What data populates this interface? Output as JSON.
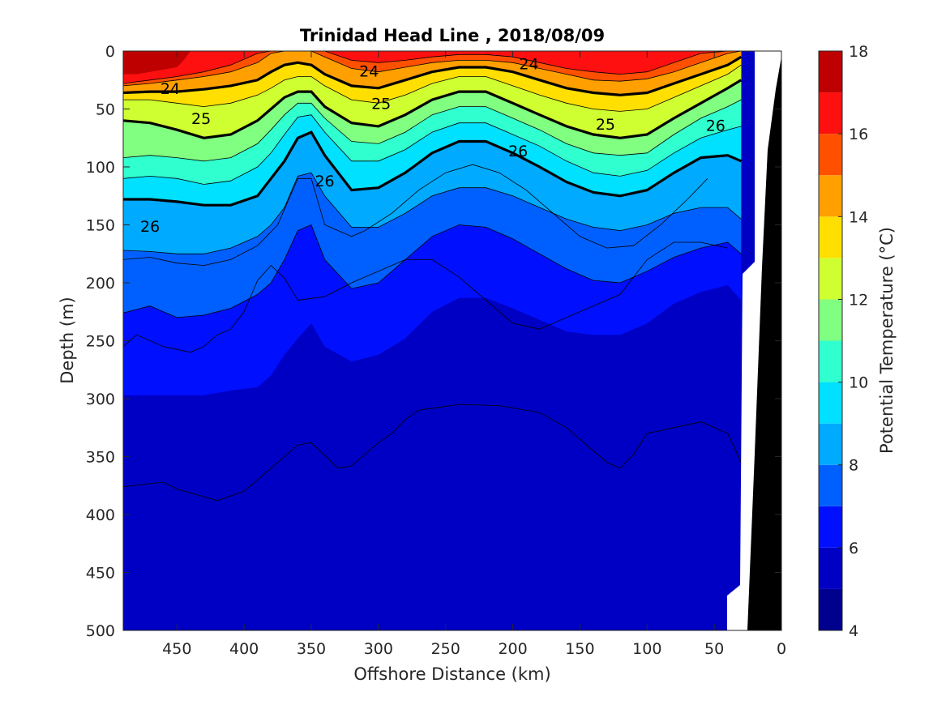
{
  "chart_data": {
    "type": "heatmap",
    "title": "Trinidad Head Line , 2018/08/09",
    "xlabel": "Offshore Distance (km)",
    "ylabel": "Depth (m)",
    "xlim": [
      490,
      0
    ],
    "ylim": [
      0,
      500
    ],
    "x_ticks": [
      450,
      400,
      350,
      300,
      250,
      200,
      150,
      100,
      50,
      0
    ],
    "y_ticks": [
      0,
      50,
      100,
      150,
      200,
      250,
      300,
      350,
      400,
      450,
      500
    ],
    "colorbar": {
      "label": "Potential Temperature (°C)",
      "ticks": [
        4,
        6,
        8,
        10,
        12,
        14,
        16,
        18
      ],
      "levels": [
        4,
        5,
        6,
        7,
        8,
        9,
        10,
        11,
        12,
        13,
        14,
        15,
        16,
        17,
        18
      ],
      "colors": [
        "#00008f",
        "#0000c4",
        "#0010ff",
        "#0060ff",
        "#00aaff",
        "#00e0ff",
        "#30ffcf",
        "#80ff80",
        "#cfff30",
        "#ffdf00",
        "#ffa000",
        "#ff5000",
        "#ff1010",
        "#bf0000"
      ]
    },
    "temperature_fields": [
      {
        "t": 5,
        "x": [
          490,
          480,
          460,
          450,
          430,
          410,
          390,
          380,
          370,
          360,
          350,
          340,
          330,
          320,
          300,
          280,
          260,
          240,
          220,
          200,
          180,
          160,
          140,
          120,
          110,
          100,
          90,
          80,
          60,
          40,
          30
        ],
        "depth": [
          368,
          380,
          395,
          400,
          405,
          405,
          410,
          415,
          415,
          380,
          375,
          395,
          410,
          385,
          355,
          345,
          325,
          322,
          325,
          330,
          340,
          350,
          370,
          395,
          405,
          385,
          365,
          345,
          335,
          340,
          340
        ]
      },
      {
        "t": 6,
        "x": [
          490,
          470,
          450,
          430,
          410,
          390,
          380,
          370,
          360,
          350,
          340,
          320,
          300,
          280,
          260,
          240,
          220,
          200,
          180,
          160,
          140,
          120,
          100,
          80,
          60,
          40,
          30
        ],
        "depth": [
          297,
          297,
          297,
          297,
          293,
          290,
          280,
          262,
          248,
          235,
          255,
          268,
          262,
          248,
          225,
          213,
          213,
          222,
          232,
          242,
          245,
          245,
          235,
          218,
          208,
          202,
          215
        ]
      },
      {
        "t": 7,
        "x": [
          490,
          470,
          450,
          430,
          410,
          390,
          380,
          370,
          360,
          350,
          340,
          320,
          300,
          280,
          260,
          240,
          220,
          200,
          180,
          160,
          140,
          120,
          100,
          80,
          60,
          40,
          30
        ],
        "depth": [
          226,
          220,
          230,
          228,
          222,
          210,
          200,
          180,
          155,
          150,
          180,
          205,
          200,
          180,
          160,
          150,
          152,
          162,
          175,
          188,
          198,
          200,
          190,
          178,
          170,
          165,
          175
        ]
      },
      {
        "t": 8,
        "x": [
          490,
          470,
          450,
          430,
          410,
          390,
          380,
          370,
          360,
          350,
          340,
          320,
          300,
          280,
          260,
          240,
          220,
          200,
          180,
          160,
          140,
          120,
          100,
          80,
          60,
          40,
          30
        ],
        "depth": [
          172,
          173,
          175,
          175,
          170,
          160,
          150,
          135,
          108,
          105,
          125,
          152,
          152,
          140,
          125,
          118,
          118,
          125,
          135,
          145,
          152,
          155,
          150,
          140,
          135,
          135,
          145
        ]
      },
      {
        "t": 9,
        "x": [
          490,
          470,
          450,
          430,
          410,
          390,
          380,
          370,
          360,
          350,
          340,
          320,
          300,
          280,
          260,
          240,
          220,
          200,
          180,
          160,
          140,
          120,
          100,
          80,
          60,
          40,
          30
        ],
        "depth": [
          128,
          128,
          130,
          133,
          133,
          125,
          110,
          95,
          75,
          70,
          90,
          120,
          118,
          105,
          88,
          78,
          78,
          88,
          100,
          113,
          122,
          125,
          120,
          105,
          92,
          90,
          95
        ]
      },
      {
        "t": 10,
        "x": [
          490,
          470,
          450,
          430,
          410,
          390,
          380,
          370,
          360,
          350,
          340,
          320,
          300,
          280,
          260,
          240,
          220,
          200,
          180,
          160,
          140,
          120,
          100,
          80,
          60,
          40,
          30
        ],
        "depth": [
          110,
          108,
          110,
          115,
          112,
          100,
          88,
          72,
          57,
          55,
          70,
          95,
          95,
          85,
          70,
          62,
          62,
          72,
          82,
          95,
          105,
          108,
          103,
          88,
          75,
          68,
          65
        ]
      },
      {
        "t": 11,
        "x": [
          490,
          470,
          450,
          430,
          410,
          390,
          380,
          370,
          360,
          350,
          340,
          320,
          300,
          280,
          260,
          240,
          220,
          200,
          180,
          160,
          140,
          120,
          100,
          80,
          60,
          40,
          30
        ],
        "depth": [
          92,
          90,
          92,
          95,
          92,
          80,
          68,
          55,
          45,
          45,
          58,
          78,
          80,
          70,
          55,
          48,
          48,
          58,
          68,
          80,
          88,
          90,
          88,
          72,
          58,
          48,
          42
        ]
      },
      {
        "t": 12,
        "x": [
          490,
          470,
          450,
          430,
          410,
          390,
          380,
          370,
          360,
          350,
          340,
          320,
          300,
          280,
          260,
          240,
          220,
          200,
          180,
          160,
          140,
          120,
          100,
          80,
          60,
          40,
          30
        ],
        "depth": [
          60,
          62,
          68,
          75,
          72,
          60,
          50,
          40,
          35,
          35,
          48,
          62,
          65,
          55,
          42,
          35,
          35,
          45,
          55,
          65,
          72,
          75,
          72,
          58,
          45,
          32,
          25
        ]
      },
      {
        "t": 13,
        "x": [
          490,
          470,
          450,
          430,
          410,
          390,
          380,
          370,
          360,
          350,
          340,
          320,
          300,
          280,
          260,
          240,
          220,
          200,
          180,
          160,
          140,
          120,
          100,
          80,
          60,
          40,
          30
        ],
        "depth": [
          42,
          42,
          45,
          48,
          45,
          38,
          32,
          25,
          22,
          22,
          30,
          42,
          45,
          38,
          28,
          22,
          22,
          30,
          38,
          45,
          50,
          52,
          50,
          40,
          30,
          20,
          12
        ]
      },
      {
        "t": 14,
        "x": [
          490,
          470,
          450,
          430,
          410,
          390,
          380,
          370,
          360,
          350,
          340,
          320,
          300,
          280,
          260,
          240,
          220,
          200,
          180,
          160,
          140,
          120,
          100,
          80,
          60,
          40,
          30
        ],
        "depth": [
          36,
          35,
          35,
          33,
          30,
          25,
          18,
          12,
          10,
          12,
          20,
          30,
          32,
          25,
          18,
          14,
          14,
          18,
          25,
          32,
          36,
          38,
          36,
          28,
          20,
          12,
          5
        ]
      },
      {
        "t": 15,
        "x": [
          490,
          470,
          450,
          430,
          410,
          390,
          380,
          370,
          360,
          350,
          340,
          320,
          300,
          280,
          260,
          240,
          220,
          200,
          180,
          160,
          140,
          120,
          100,
          80,
          60,
          40,
          30
        ],
        "depth": [
          30,
          28,
          25,
          22,
          18,
          10,
          2,
          0,
          0,
          0,
          5,
          15,
          18,
          14,
          10,
          8,
          8,
          10,
          15,
          20,
          25,
          26,
          24,
          18,
          10,
          2,
          0
        ]
      },
      {
        "t": 16,
        "x": [
          490,
          470,
          450,
          430,
          410,
          390,
          380,
          370,
          360,
          350,
          340,
          320,
          300,
          280,
          260,
          240,
          220,
          200,
          180,
          160,
          140,
          120,
          100,
          80,
          60,
          40,
          30
        ],
        "depth": [
          28,
          25,
          22,
          18,
          12,
          2,
          0,
          0,
          0,
          0,
          0,
          8,
          10,
          8,
          5,
          3,
          3,
          5,
          10,
          15,
          18,
          20,
          18,
          10,
          2,
          0,
          0
        ]
      },
      {
        "t": 17,
        "x": [
          490,
          480,
          470,
          460,
          450,
          445,
          440
        ],
        "depth": [
          20,
          20,
          18,
          16,
          14,
          8,
          0
        ]
      }
    ],
    "isotherms": [
      {
        "depth": [
          376,
          372,
          378,
          388,
          380,
          360,
          340,
          338,
          360,
          358,
          338,
          330,
          318,
          310,
          305,
          306,
          312,
          325,
          345,
          355,
          360,
          348,
          330,
          325,
          320,
          330,
          355
        ],
        "x": [
          490,
          460,
          450,
          420,
          400,
          380,
          360,
          350,
          330,
          320,
          300,
          290,
          280,
          270,
          240,
          210,
          180,
          160,
          140,
          130,
          120,
          110,
          100,
          80,
          60,
          40,
          30
        ]
      },
      {
        "depth": [
          255,
          245,
          255,
          260,
          255,
          245,
          240,
          225,
          198,
          185,
          196,
          215,
          212,
          200,
          190,
          180,
          180,
          195,
          215,
          235,
          240,
          230,
          220,
          210,
          180,
          165,
          165,
          170
        ],
        "x": [
          490,
          480,
          460,
          440,
          430,
          420,
          410,
          400,
          390,
          380,
          370,
          360,
          340,
          320,
          300,
          280,
          260,
          240,
          220,
          200,
          180,
          160,
          140,
          120,
          100,
          80,
          60,
          40
        ]
      },
      {
        "depth": [
          180,
          178,
          183,
          185,
          180,
          168,
          150,
          110,
          110,
          150,
          160,
          155,
          140,
          120,
          105,
          98,
          105,
          120,
          140,
          160,
          170,
          168,
          150,
          128,
          110
        ],
        "x": [
          490,
          470,
          450,
          430,
          410,
          390,
          375,
          360,
          350,
          340,
          320,
          310,
          290,
          270,
          250,
          230,
          210,
          190,
          170,
          150,
          130,
          110,
          90,
          70,
          55
        ]
      }
    ],
    "contour_labels": [
      {
        "text": "24",
        "x": 455,
        "depth": 32
      },
      {
        "text": "24",
        "x": 307,
        "depth": 17
      },
      {
        "text": "24",
        "x": 188,
        "depth": 11
      },
      {
        "text": "25",
        "x": 432,
        "depth": 58
      },
      {
        "text": "25",
        "x": 298,
        "depth": 45
      },
      {
        "text": "25",
        "x": 131,
        "depth": 63
      },
      {
        "text": "26",
        "x": 470,
        "depth": 151
      },
      {
        "text": "26",
        "x": 340,
        "depth": 112
      },
      {
        "text": "26",
        "x": 196,
        "depth": 86
      },
      {
        "text": "26",
        "x": 49,
        "depth": 64
      }
    ]
  }
}
